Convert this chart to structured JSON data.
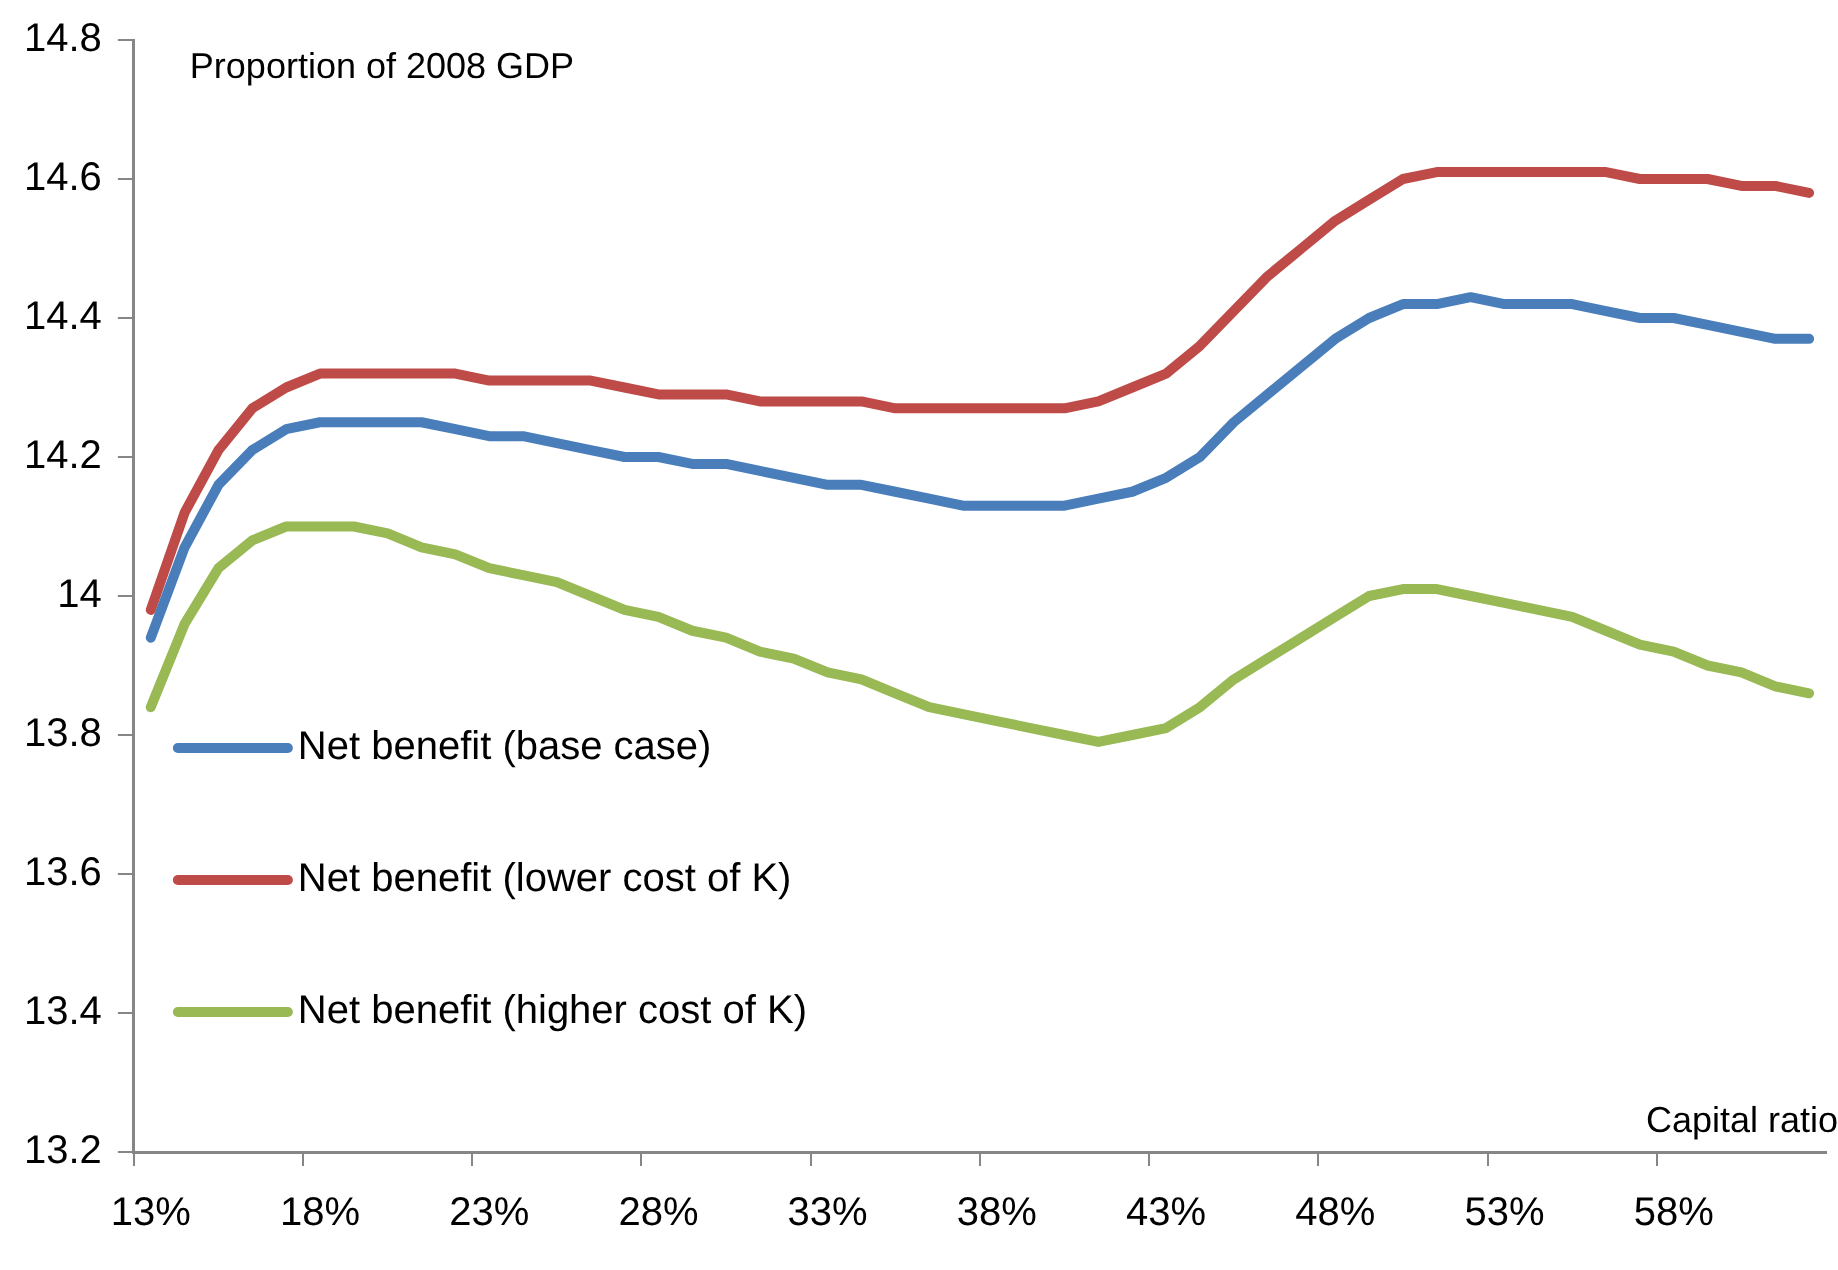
{
  "chart_data": {
    "type": "line",
    "ylabel": "Proportion of 2008 GDP",
    "xlabel": "Capital ratio",
    "categories": [
      "13%",
      null,
      null,
      null,
      null,
      "18%",
      null,
      null,
      null,
      null,
      "23%",
      null,
      null,
      null,
      null,
      "28%",
      null,
      null,
      null,
      null,
      "33%",
      null,
      null,
      null,
      null,
      "38%",
      null,
      null,
      null,
      null,
      "43%",
      null,
      null,
      null,
      null,
      "48%",
      null,
      null,
      null,
      null,
      "53%",
      null,
      null,
      null,
      null,
      "58%",
      null,
      null,
      null,
      null
    ],
    "ylim": [
      13.2,
      14.8
    ],
    "yticks": [
      13.2,
      13.4,
      13.6,
      13.8,
      14,
      14.2,
      14.4,
      14.6,
      14.8
    ],
    "grid": false,
    "legend": "bottom left",
    "series": [
      {
        "name": "Net benefit (base case)",
        "color": "#4a7ebb",
        "values": [
          13.94,
          14.07,
          14.16,
          14.21,
          14.24,
          14.25,
          14.25,
          14.25,
          14.25,
          14.24,
          14.23,
          14.23,
          14.22,
          14.21,
          14.2,
          14.2,
          14.19,
          14.19,
          14.18,
          14.17,
          14.16,
          14.16,
          14.15,
          14.14,
          14.13,
          14.13,
          14.13,
          14.13,
          14.14,
          14.15,
          14.17,
          14.2,
          14.25,
          14.29,
          14.33,
          14.37,
          14.4,
          14.42,
          14.42,
          14.43,
          14.42,
          14.42,
          14.42,
          14.41,
          14.4,
          14.4,
          14.39,
          14.38,
          14.37,
          14.37
        ]
      },
      {
        "name": "Net benefit (lower cost of K)",
        "color": "#be4b48",
        "values": [
          13.98,
          14.12,
          14.21,
          14.27,
          14.3,
          14.32,
          14.32,
          14.32,
          14.32,
          14.32,
          14.31,
          14.31,
          14.31,
          14.31,
          14.3,
          14.29,
          14.29,
          14.29,
          14.28,
          14.28,
          14.28,
          14.28,
          14.27,
          14.27,
          14.27,
          14.27,
          14.27,
          14.27,
          14.28,
          14.3,
          14.32,
          14.36,
          14.41,
          14.46,
          14.5,
          14.54,
          14.57,
          14.6,
          14.61,
          14.61,
          14.61,
          14.61,
          14.61,
          14.61,
          14.6,
          14.6,
          14.6,
          14.59,
          14.59,
          14.58
        ]
      },
      {
        "name": "Net benefit (higher cost of K)",
        "color": "#98b954",
        "values": [
          13.84,
          13.96,
          14.04,
          14.08,
          14.1,
          14.1,
          14.1,
          14.09,
          14.07,
          14.06,
          14.04,
          14.03,
          14.02,
          14.0,
          13.98,
          13.97,
          13.95,
          13.94,
          13.92,
          13.91,
          13.89,
          13.88,
          13.86,
          13.84,
          13.83,
          13.82,
          13.81,
          13.8,
          13.79,
          13.8,
          13.81,
          13.84,
          13.88,
          13.91,
          13.94,
          13.97,
          14.0,
          14.01,
          14.01,
          14.0,
          13.99,
          13.98,
          13.97,
          13.95,
          13.93,
          13.92,
          13.9,
          13.89,
          13.87,
          13.86
        ]
      }
    ]
  }
}
